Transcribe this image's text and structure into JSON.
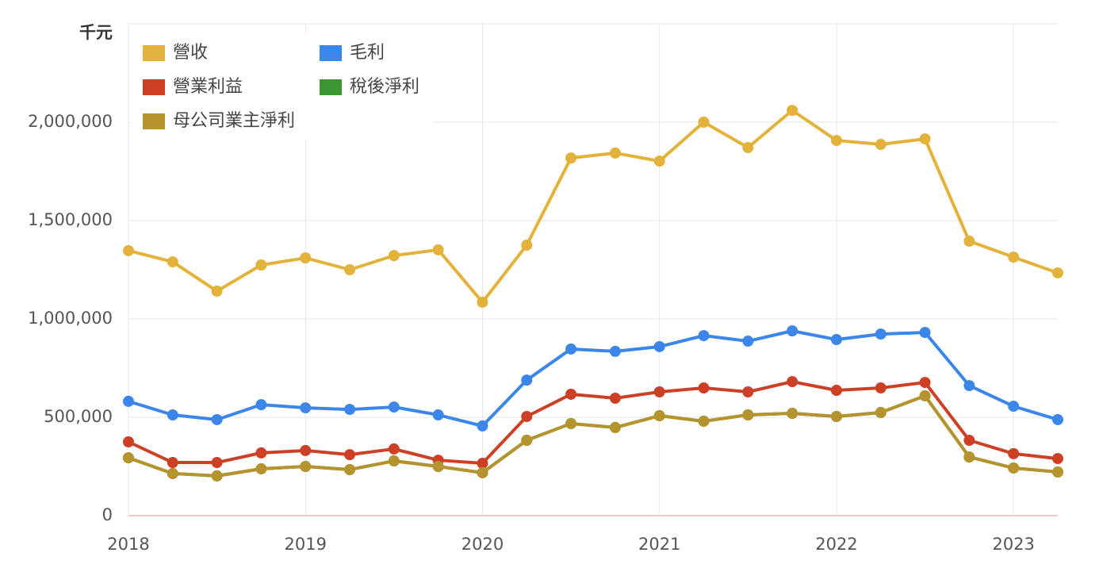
{
  "chart_data": {
    "type": "line",
    "y_label": "千元",
    "x": [
      2018,
      2018.25,
      2018.5,
      2018.75,
      2019,
      2019.25,
      2019.5,
      2019.75,
      2020,
      2020.25,
      2020.5,
      2020.75,
      2021,
      2021.25,
      2021.5,
      2021.75,
      2022,
      2022.25,
      2022.5,
      2022.75,
      2023,
      2023.25
    ],
    "xlim": [
      2018,
      2023.25
    ],
    "xticks": [
      2018,
      2019,
      2020,
      2021,
      2022,
      2023
    ],
    "ylim": [
      0,
      2500000
    ],
    "yticks": [
      0,
      {
        "value": 500000,
        "label": "500,000"
      },
      {
        "value": 1000000,
        "label": "1,000,000"
      },
      {
        "value": 1500000,
        "label": "1,500,000"
      },
      {
        "value": 2000000,
        "label": "2,000,000"
      }
    ],
    "grid": true,
    "legend": "top-left",
    "series": [
      {
        "name": "營收",
        "color": "#e2b23a",
        "values": [
          1347000,
          1290000,
          1141000,
          1274000,
          1310000,
          1250000,
          1322000,
          1351000,
          1085000,
          1375000,
          1818000,
          1843000,
          1802000,
          2000000,
          1871000,
          2060000,
          1907000,
          1887000,
          1915000,
          1395000,
          1314000,
          1234000
        ]
      },
      {
        "name": "毛利",
        "color": "#3b86e8",
        "values": [
          581000,
          512000,
          488000,
          564000,
          548000,
          540000,
          552000,
          512000,
          456000,
          689000,
          847000,
          835000,
          859000,
          915000,
          887000,
          939000,
          895000,
          923000,
          931000,
          661000,
          556000,
          488000
        ]
      },
      {
        "name": "營業利益",
        "color": "#cc4125",
        "values": [
          375000,
          270000,
          270000,
          319000,
          331000,
          310000,
          339000,
          282000,
          266000,
          504000,
          617000,
          597000,
          629000,
          649000,
          629000,
          681000,
          637000,
          649000,
          677000,
          383000,
          315000,
          290000
        ]
      },
      {
        "name": "稅後淨利",
        "color": "#3d9634",
        "values": [
          294000,
          214000,
          202000,
          238000,
          250000,
          234000,
          278000,
          250000,
          218000,
          383000,
          468000,
          448000,
          508000,
          480000,
          512000,
          520000,
          504000,
          524000,
          609000,
          298000,
          242000,
          222000
        ]
      },
      {
        "name": "母公司業主淨利",
        "color": "#b5932e",
        "values": [
          294000,
          214000,
          202000,
          238000,
          250000,
          234000,
          278000,
          250000,
          218000,
          383000,
          468000,
          448000,
          508000,
          480000,
          512000,
          520000,
          504000,
          524000,
          609000,
          298000,
          242000,
          222000
        ]
      }
    ]
  }
}
